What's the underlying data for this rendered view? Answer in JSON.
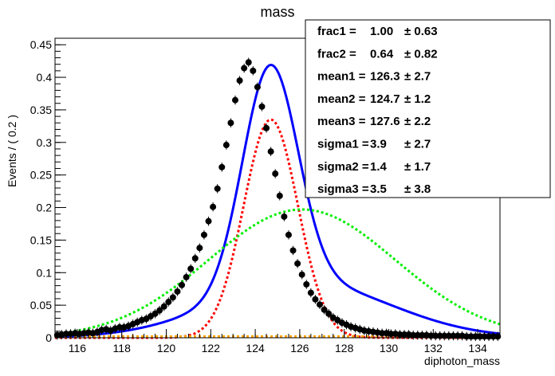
{
  "chart_data": {
    "type": "scatter",
    "title": "mass",
    "xlabel": "diphoton_mass",
    "ylabel": "Events / ( 0.2 )",
    "xlim": [
      115,
      135
    ],
    "ylim": [
      0,
      0.46
    ],
    "x_ticks": [
      116,
      118,
      120,
      122,
      124,
      126,
      128,
      130,
      132,
      134
    ],
    "y_ticks": [
      {
        "v": 0,
        "label": "0"
      },
      {
        "v": 0.05,
        "label": "0.05"
      },
      {
        "v": 0.1,
        "label": "0.1"
      },
      {
        "v": 0.15,
        "label": "0.15"
      },
      {
        "v": 0.2,
        "label": "0.2"
      },
      {
        "v": 0.25,
        "label": "0.25"
      },
      {
        "v": 0.3,
        "label": "0.3"
      },
      {
        "v": 0.35,
        "label": "0.35"
      },
      {
        "v": 0.4,
        "label": "0.4"
      },
      {
        "v": 0.45,
        "label": "0.45"
      }
    ],
    "grid": false,
    "stats_box": {
      "placement": "top-right",
      "entries": [
        {
          "name": "frac1 = ",
          "value": "1.00",
          "error": "± 0.63"
        },
        {
          "name": "frac2 = ",
          "value": "0.64",
          "error": "± 0.82"
        },
        {
          "name": "mean1 = ",
          "value": "126.3",
          "error": "± 2.7"
        },
        {
          "name": "mean2 = ",
          "value": "124.7",
          "error": "± 1.2"
        },
        {
          "name": "mean3 = ",
          "value": "127.6",
          "error": "± 2.2"
        },
        {
          "name": "sigma1 = ",
          "value": "3.9",
          "error": "± 2.7"
        },
        {
          "name": "sigma2 = ",
          "value": "1.4",
          "error": "± 1.7"
        },
        {
          "name": "sigma3 = ",
          "value": "3.5",
          "error": "± 3.8"
        }
      ]
    },
    "data_points": {
      "x_start": 115.1,
      "x_step": 0.2,
      "y": [
        0.004,
        0.005,
        0.006,
        0.006,
        0.007,
        0.006,
        0.007,
        0.008,
        0.007,
        0.009,
        0.012,
        0.013,
        0.011,
        0.014,
        0.016,
        0.016,
        0.018,
        0.021,
        0.024,
        0.027,
        0.029,
        0.033,
        0.037,
        0.042,
        0.048,
        0.055,
        0.062,
        0.071,
        0.081,
        0.093,
        0.106,
        0.122,
        0.138,
        0.158,
        0.179,
        0.201,
        0.229,
        0.262,
        0.296,
        0.33,
        0.365,
        0.395,
        0.414,
        0.423,
        0.41,
        0.385,
        0.355,
        0.322,
        0.286,
        0.252,
        0.218,
        0.186,
        0.158,
        0.134,
        0.114,
        0.097,
        0.082,
        0.069,
        0.059,
        0.051,
        0.043,
        0.037,
        0.031,
        0.027,
        0.023,
        0.02,
        0.017,
        0.015,
        0.013,
        0.011,
        0.01,
        0.009,
        0.008,
        0.007,
        0.007,
        0.006,
        0.006,
        0.005,
        0.005,
        0.005,
        0.004,
        0.004,
        0.004,
        0.004,
        0.003,
        0.003,
        0.003,
        0.003,
        0.003,
        0.003,
        0.003,
        0.003,
        0.002,
        0.002,
        0.002,
        0.002,
        0.002,
        0.002,
        0.002,
        0.002
      ],
      "error": 0.007,
      "color": "#000000"
    },
    "curves": [
      {
        "style": "total",
        "color": "#0000ff",
        "components": [
          {
            "mu": 124.7,
            "sigma": 1.22,
            "amp": 0.335
          },
          {
            "mu": 126.1,
            "sigma": 3.9,
            "amp": 0.085
          },
          {
            "mu": 123.4,
            "sigma": 1.0,
            "amp": 0.01
          }
        ]
      },
      {
        "style": "dashed",
        "color": "#ff0000",
        "components": [
          {
            "mu": 124.7,
            "sigma": 1.22,
            "amp": 0.335
          }
        ]
      },
      {
        "style": "dashed",
        "color": "#00ee00",
        "components": [
          {
            "mu": 126.1,
            "sigma": 4.2,
            "amp": 0.197
          }
        ]
      },
      {
        "style": "dashed",
        "color": "#ffa500",
        "components": [
          {
            "mu": 125,
            "sigma": 1,
            "amp": 0.0
          }
        ],
        "offset": 0.002
      }
    ]
  }
}
